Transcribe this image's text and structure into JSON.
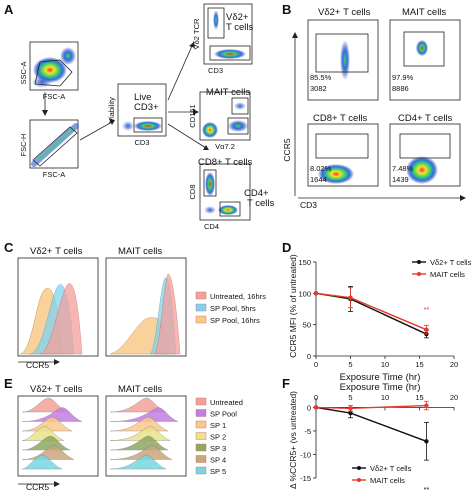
{
  "panels": {
    "A": {
      "letter": "A",
      "plots": {
        "scatter1": {
          "ylabel": "SSC-A",
          "xlabel": "FSC-A"
        },
        "scatter2": {
          "ylabel": "FSC-H",
          "xlabel": "FSC-A"
        },
        "scatter3": {
          "ylabel": "Viability",
          "xlabel": "CD3",
          "gate_label": "Live\nCD3+"
        },
        "scatter4": {
          "ylabel": "Vδ2 TCR",
          "xlabel": "CD3",
          "gate_label": "Vδ2+\nT cells"
        },
        "scatter5": {
          "ylabel": "CD161",
          "xlabel": "Vα7.2",
          "gate_label": "MAIT cells"
        },
        "scatter6": {
          "ylabel": "CD8",
          "xlabel": "CD4",
          "gate_label_1": "CD8+ T cells",
          "gate_label_2": "CD4+\nT cells"
        }
      }
    },
    "B": {
      "letter": "B",
      "ylabel": "CCR5",
      "xlabel": "CD3",
      "plots": [
        {
          "title": "Vδ2+ T cells",
          "percent": "85.5%",
          "count": "3082"
        },
        {
          "title": "MAIT cells",
          "percent": "97.9%",
          "count": "8886"
        },
        {
          "title": "CD8+ T cells",
          "percent": "8.02%",
          "count": "1644"
        },
        {
          "title": "CD4+ T cells",
          "percent": "7.48%",
          "count": "1439"
        }
      ]
    },
    "C": {
      "letter": "C",
      "titles": [
        "Vδ2+ T cells",
        "MAIT cells"
      ],
      "xlabel": "CCR5",
      "legend": [
        {
          "label": "Untreated, 16hrs",
          "color": "#f4a09a"
        },
        {
          "label": "SP Pool, 5hrs",
          "color": "#7fd3f0"
        },
        {
          "label": "SP Pool, 16hrs",
          "color": "#f7c98a"
        }
      ]
    },
    "D": {
      "letter": "D",
      "ylabel": "CCR5 MFI (% of untreated)",
      "xlabel": "Exposure Time (hr)",
      "legend": [
        {
          "label": "Vδ2+ T cells",
          "color": "#111111"
        },
        {
          "label": "MAIT cells",
          "color": "#e8392c"
        }
      ],
      "significance": "**",
      "chart_data": {
        "type": "line",
        "x": [
          0,
          5,
          16
        ],
        "series": [
          {
            "name": "Vδ2+ T cells",
            "values": [
              100,
              91,
              35
            ],
            "errors": [
              0,
              20,
              6
            ],
            "color": "#111111"
          },
          {
            "name": "MAIT cells",
            "values": [
              100,
              93,
              42
            ],
            "errors": [
              0,
              16,
              7
            ],
            "color": "#e8392c"
          }
        ],
        "xlabel": "Exposure Time (hr)",
        "ylabel": "CCR5 MFI (% of untreated)",
        "xlim": [
          0,
          20
        ],
        "ylim": [
          0,
          150
        ],
        "xticks": [
          "0",
          "5",
          "10",
          "15",
          "20"
        ],
        "yticks": [
          "0",
          "50",
          "100",
          "150"
        ]
      }
    },
    "E": {
      "letter": "E",
      "titles": [
        "Vδ2+ T cells",
        "MAIT cells"
      ],
      "xlabel": "CCR5",
      "legend": [
        {
          "label": "Untreated",
          "color": "#f4a09a"
        },
        {
          "label": "SP Pool",
          "color": "#c27ee0"
        },
        {
          "label": "SP 1",
          "color": "#f7c98a"
        },
        {
          "label": "SP 2",
          "color": "#e9e38a"
        },
        {
          "label": "SP 3",
          "color": "#8fa860"
        },
        {
          "label": "SP 4",
          "color": "#c9a77c"
        },
        {
          "label": "SP 5",
          "color": "#76d7e3"
        }
      ]
    },
    "F": {
      "letter": "F",
      "ylabel": "Δ %CCR5+ (vs untreated)",
      "xlabel": "Exposure Time (hr)",
      "legend": [
        {
          "label": "Vδ2+ T cells",
          "color": "#111111"
        },
        {
          "label": "MAIT cells",
          "color": "#e8392c"
        }
      ],
      "significance": "**",
      "chart_data": {
        "type": "line",
        "x": [
          0,
          5,
          16
        ],
        "series": [
          {
            "name": "Vδ2+ T cells",
            "values": [
              0,
              -1.2,
              -7.2
            ],
            "errors": [
              0,
              1.0,
              4.0
            ],
            "color": "#111111"
          },
          {
            "name": "MAIT cells",
            "values": [
              0,
              -0.2,
              0.4
            ],
            "errors": [
              0,
              0.6,
              0.9
            ],
            "color": "#e8392c"
          }
        ],
        "xlabel": "Exposure Time (hr)",
        "ylabel": "Δ %CCR5+ (vs untreated)",
        "xlim": [
          0,
          20
        ],
        "ylim": [
          -15,
          2
        ],
        "xticks": [
          "0",
          "5",
          "10",
          "15",
          "20"
        ],
        "yticks": [
          "0",
          "-5",
          "-10",
          "-15"
        ]
      }
    }
  }
}
